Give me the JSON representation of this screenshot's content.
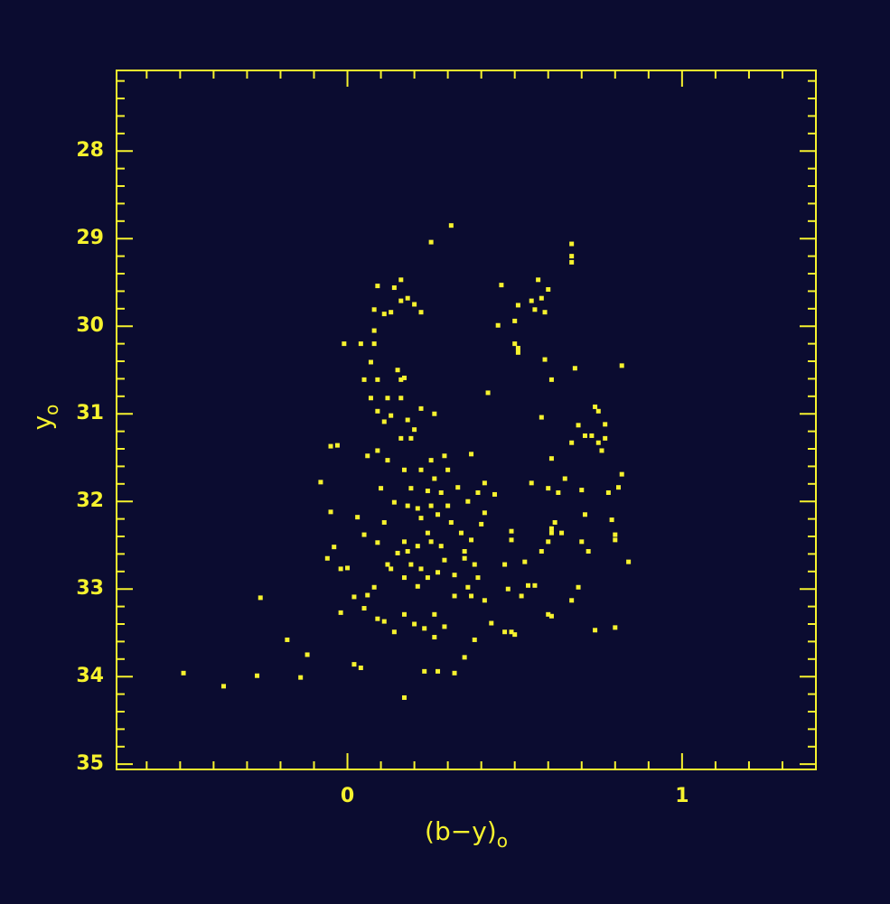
{
  "chart_data": {
    "type": "scatter",
    "xlabel": {
      "text": "(b−y)",
      "subscript": "o"
    },
    "ylabel": {
      "text": "y",
      "subscript": "o"
    },
    "color": "#f6f22e",
    "background": "#0b0c30",
    "xlim": [
      -0.69,
      1.4
    ],
    "ylim": [
      35.06,
      27.08
    ],
    "xticks": [
      0,
      1
    ],
    "yticks": [
      28,
      29,
      30,
      31,
      32,
      33,
      34,
      35
    ],
    "xminorticks": [
      -0.6,
      -0.5,
      -0.4,
      -0.3,
      -0.2,
      -0.1,
      0.1,
      0.2,
      0.3,
      0.4,
      0.5,
      0.6,
      0.7,
      0.8,
      0.9,
      1.1,
      1.2,
      1.3
    ],
    "yminorticks": [
      27.2,
      27.4,
      27.6,
      27.8,
      28.2,
      28.4,
      28.6,
      28.8,
      29.2,
      29.4,
      29.6,
      29.8,
      30.2,
      30.4,
      30.6,
      30.8,
      31.2,
      31.4,
      31.6,
      31.8,
      32.2,
      32.4,
      32.6,
      32.8,
      33.2,
      33.4,
      33.6,
      33.8,
      34.2,
      34.4,
      34.6,
      34.8
    ],
    "x": [
      -0.49,
      -0.37,
      -0.27,
      -0.26,
      -0.18,
      -0.14,
      -0.12,
      -0.08,
      -0.06,
      -0.05,
      -0.05,
      -0.03,
      -0.04,
      -0.02,
      -0.02,
      -0.01,
      0.0,
      0.02,
      0.04,
      0.02,
      0.03,
      0.04,
      0.05,
      0.06,
      0.05,
      0.06,
      0.05,
      0.07,
      0.07,
      0.08,
      0.08,
      0.08,
      0.09,
      0.09,
      0.09,
      0.09,
      0.1,
      0.09,
      0.08,
      0.09,
      0.11,
      0.11,
      0.12,
      0.11,
      0.11,
      0.12,
      0.13,
      0.13,
      0.12,
      0.13,
      0.14,
      0.14,
      0.15,
      0.14,
      0.15,
      0.16,
      0.16,
      0.16,
      0.16,
      0.16,
      0.17,
      0.17,
      0.17,
      0.17,
      0.17,
      0.17,
      0.18,
      0.18,
      0.18,
      0.18,
      0.19,
      0.19,
      0.19,
      0.2,
      0.2,
      0.2,
      0.21,
      0.21,
      0.21,
      0.22,
      0.22,
      0.22,
      0.22,
      0.22,
      0.23,
      0.23,
      0.24,
      0.24,
      0.24,
      0.25,
      0.25,
      0.25,
      0.25,
      0.26,
      0.26,
      0.26,
      0.26,
      0.27,
      0.27,
      0.27,
      0.28,
      0.28,
      0.29,
      0.29,
      0.29,
      0.3,
      0.3,
      0.31,
      0.31,
      0.32,
      0.32,
      0.32,
      0.33,
      0.34,
      0.35,
      0.35,
      0.35,
      0.36,
      0.36,
      0.37,
      0.37,
      0.37,
      0.38,
      0.38,
      0.39,
      0.39,
      0.4,
      0.41,
      0.41,
      0.41,
      0.42,
      0.43,
      0.44,
      0.45,
      0.46,
      0.47,
      0.47,
      0.48,
      0.49,
      0.49,
      0.49,
      0.5,
      0.5,
      0.5,
      0.51,
      0.51,
      0.51,
      0.52,
      0.53,
      0.54,
      0.55,
      0.55,
      0.56,
      0.56,
      0.57,
      0.58,
      0.58,
      0.58,
      0.59,
      0.59,
      0.6,
      0.6,
      0.6,
      0.6,
      0.61,
      0.61,
      0.61,
      0.61,
      0.61,
      0.62,
      0.63,
      0.64,
      0.65,
      0.67,
      0.67,
      0.67,
      0.67,
      0.67,
      0.68,
      0.69,
      0.69,
      0.7,
      0.7,
      0.71,
      0.71,
      0.72,
      0.73,
      0.74,
      0.74,
      0.75,
      0.75,
      0.76,
      0.77,
      0.77,
      0.78,
      0.79,
      0.8,
      0.8,
      0.8,
      0.81,
      0.82,
      0.82,
      0.84
    ],
    "values": [
      33.96,
      34.11,
      33.99,
      33.1,
      33.58,
      34.01,
      33.75,
      31.78,
      32.65,
      32.12,
      31.37,
      31.36,
      32.52,
      32.77,
      33.27,
      30.2,
      32.76,
      33.86,
      33.9,
      33.09,
      32.18,
      30.2,
      30.61,
      31.48,
      33.22,
      33.07,
      32.38,
      30.82,
      30.41,
      30.05,
      29.81,
      30.2,
      29.54,
      30.61,
      30.97,
      31.42,
      31.85,
      32.47,
      32.98,
      33.34,
      33.37,
      29.86,
      30.82,
      31.09,
      32.24,
      32.72,
      29.84,
      31.02,
      31.53,
      32.77,
      33.49,
      29.56,
      30.5,
      32.01,
      32.59,
      29.47,
      29.71,
      30.61,
      30.82,
      31.28,
      31.64,
      32.46,
      32.87,
      33.29,
      34.24,
      30.59,
      31.07,
      32.05,
      32.57,
      29.68,
      31.28,
      31.85,
      32.72,
      33.4,
      29.75,
      31.18,
      32.08,
      32.51,
      32.97,
      29.84,
      30.94,
      31.64,
      32.19,
      32.77,
      33.45,
      33.94,
      31.88,
      32.36,
      32.87,
      31.53,
      29.04,
      32.05,
      32.46,
      31.0,
      31.74,
      33.29,
      33.55,
      33.94,
      32.15,
      32.81,
      31.9,
      32.51,
      33.43,
      31.48,
      32.67,
      31.64,
      32.05,
      28.85,
      32.24,
      32.84,
      33.08,
      33.96,
      31.84,
      32.36,
      32.65,
      32.57,
      33.78,
      32.0,
      32.98,
      32.44,
      31.46,
      33.08,
      33.58,
      32.72,
      31.9,
      32.87,
      32.26,
      31.79,
      32.13,
      33.13,
      30.76,
      33.39,
      31.92,
      29.99,
      29.53,
      33.49,
      32.72,
      33.0,
      32.44,
      32.34,
      33.49,
      29.94,
      30.2,
      33.52,
      30.25,
      30.3,
      29.76,
      33.08,
      32.69,
      32.96,
      31.79,
      29.71,
      32.96,
      29.81,
      29.47,
      31.04,
      29.68,
      32.57,
      30.38,
      29.84,
      32.46,
      31.85,
      29.58,
      33.29,
      30.61,
      32.36,
      33.31,
      31.51,
      32.31,
      32.24,
      31.9,
      32.36,
      31.74,
      31.33,
      33.13,
      29.06,
      29.2,
      29.27,
      30.48,
      31.13,
      32.98,
      31.87,
      32.46,
      31.25,
      32.15,
      32.57,
      31.25,
      30.92,
      33.47,
      31.33,
      30.97,
      31.42,
      31.28,
      31.12,
      31.9,
      32.21,
      32.38,
      32.44,
      33.44,
      31.84,
      30.45,
      31.69,
      32.69
    ]
  }
}
